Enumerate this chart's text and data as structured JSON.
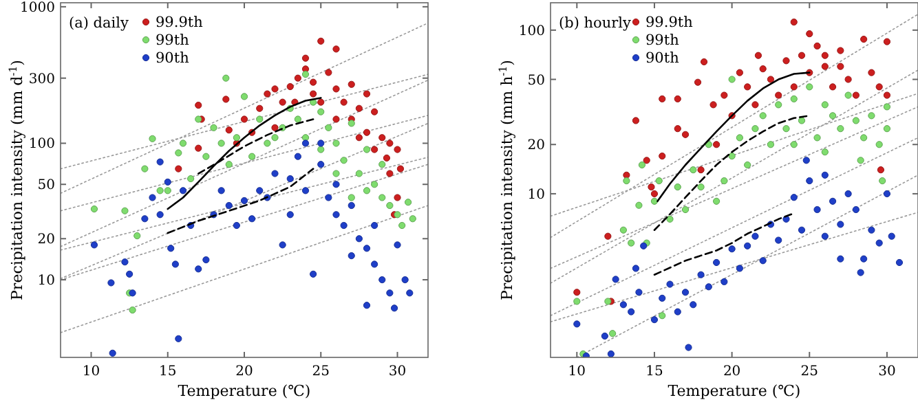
{
  "chart_data": [
    {
      "type": "scatter",
      "annotations": [
        "(a) daily"
      ],
      "xlabel": "Temperature (℃)",
      "ylabel": "Precipitation intensity (mm d$^{-1}$)",
      "xlim": [
        8,
        32
      ],
      "ylim": [
        2.7,
        1070
      ],
      "xticks": [
        10,
        15,
        20,
        25,
        30
      ],
      "yticks": [
        10,
        20,
        50,
        100,
        300,
        1000
      ],
      "log": "y",
      "grid": false,
      "legend": "top left",
      "series": [
        {
          "type": "line",
          "color": "#999999",
          "line_style": "dotted",
          "x": [
            8,
            32
          ],
          "values": [
            65,
            320
          ]
        },
        {
          "type": "line",
          "color": "#999999",
          "line_style": "dotted",
          "x": [
            8,
            32
          ],
          "values": [
            43,
            760
          ]
        },
        {
          "type": "line",
          "color": "#999999",
          "line_style": "dotted",
          "x": [
            8,
            32
          ],
          "values": [
            32,
            160
          ]
        },
        {
          "type": "line",
          "color": "#999999",
          "line_style": "dotted",
          "x": [
            8,
            32
          ],
          "values": [
            17.5,
            290
          ]
        },
        {
          "type": "line",
          "color": "#999999",
          "line_style": "dotted",
          "x": [
            8,
            32
          ],
          "values": [
            16.5,
            79
          ]
        },
        {
          "type": "line",
          "color": "#999999",
          "line_style": "dotted",
          "x": [
            8,
            32
          ],
          "values": [
            10.2,
            140
          ]
        },
        {
          "type": "line",
          "color": "#999999",
          "line_style": "dotted",
          "x": [
            8,
            32
          ],
          "values": [
            10,
            70
          ]
        },
        {
          "type": "line",
          "color": "#999999",
          "line_style": "dotted",
          "x": [
            8,
            32
          ],
          "values": [
            4.1,
            35
          ]
        },
        {
          "name": "99.9th",
          "marker": "circle",
          "color": "#cc1f1f",
          "x": [
            17,
            17.2,
            17,
            15.7,
            18.8,
            19,
            19.5,
            20,
            20.5,
            21,
            21.5,
            22,
            22.5,
            23,
            23.5,
            24,
            24,
            24.5,
            25,
            25.5,
            26,
            26,
            26.5,
            27,
            27.5,
            27,
            28,
            28.5,
            28,
            29,
            29.5,
            30,
            28.5,
            29.3,
            30.2,
            26,
            25,
            23.3,
            22,
            24.5,
            27.5,
            29.5,
            30,
            29.8
          ],
          "values": [
            190,
            150,
            92,
            65,
            210,
            125,
            100,
            150,
            120,
            180,
            230,
            250,
            200,
            260,
            300,
            420,
            350,
            280,
            560,
            330,
            490,
            250,
            200,
            270,
            180,
            150,
            230,
            170,
            120,
            110,
            100,
            90,
            90,
            78,
            65,
            150,
            200,
            200,
            130,
            230,
            110,
            60,
            40,
            30
          ]
        },
        {
          "name": "99th",
          "marker": "circle",
          "color": "#7fdc6e",
          "x": [
            10.2,
            12.2,
            12.5,
            12.7,
            13,
            13.5,
            14,
            14.5,
            15,
            15.7,
            16,
            16.5,
            17,
            17.5,
            18,
            18.8,
            18.5,
            19,
            19.5,
            20,
            20.5,
            21,
            21.5,
            22,
            22.5,
            23,
            23.5,
            24,
            24,
            24.5,
            25,
            25,
            25.5,
            26,
            26.5,
            27,
            27.5,
            28,
            28,
            28.5,
            29,
            29.5,
            30,
            30.3,
            31,
            30.7,
            27,
            26,
            29
          ],
          "values": [
            33,
            32,
            8,
            6,
            21,
            65,
            108,
            45,
            45,
            85,
            100,
            55,
            150,
            80,
            130,
            300,
            100,
            70,
            110,
            220,
            80,
            150,
            100,
            110,
            130,
            180,
            150,
            320,
            110,
            200,
            170,
            90,
            130,
            100,
            75,
            140,
            60,
            90,
            45,
            50,
            40,
            35,
            30,
            25,
            28,
            37,
            40,
            60,
            70
          ]
        },
        {
          "name": "90th",
          "marker": "circle",
          "color": "#1f3fc8",
          "x": [
            10.2,
            11.3,
            11.4,
            12.2,
            12.5,
            12.7,
            13.5,
            14,
            14.5,
            14.5,
            15,
            15.2,
            15.5,
            15.7,
            16,
            16.5,
            17,
            17.5,
            18,
            18.5,
            19,
            19.5,
            20,
            20.5,
            21,
            21.5,
            22,
            22.5,
            23,
            23.5,
            24,
            24.5,
            24,
            25,
            25.5,
            26,
            26.5,
            27,
            27.5,
            28,
            28,
            28.5,
            29,
            29.5,
            29.8,
            30,
            30.5,
            30.8,
            27,
            26,
            28.5,
            25,
            23
          ],
          "values": [
            18,
            9.5,
            2.9,
            13.5,
            11,
            8,
            28,
            40,
            73,
            30,
            52,
            17,
            13,
            3.7,
            45,
            25,
            12,
            14,
            30,
            45,
            35,
            25,
            38,
            28,
            45,
            40,
            60,
            18,
            55,
            80,
            100,
            11,
            45,
            70,
            40,
            50,
            25,
            35,
            20,
            17,
            6.5,
            13,
            10,
            8,
            6.2,
            18,
            10,
            8,
            15,
            30,
            25,
            100,
            30
          ]
        },
        {
          "type": "line",
          "color": "#000000",
          "line_style": "solid",
          "x": [
            15,
            16,
            17,
            18,
            19,
            20,
            21,
            22,
            23,
            24,
            25
          ],
          "values": [
            33,
            40,
            52,
            68,
            88,
            110,
            135,
            160,
            185,
            205,
            215
          ]
        },
        {
          "type": "line",
          "color": "#000000",
          "line_style": "dashed",
          "x": [
            17,
            18.5,
            20,
            21.5,
            23,
            24.5
          ],
          "values": [
            60,
            75,
            95,
            115,
            135,
            150
          ]
        },
        {
          "type": "line",
          "color": "#000000",
          "line_style": "dashed",
          "x": [
            15,
            17,
            19,
            21,
            23,
            24.5
          ],
          "values": [
            22,
            27,
            32,
            38,
            48,
            65
          ]
        }
      ]
    },
    {
      "type": "scatter",
      "annotations": [
        "(b) hourly"
      ],
      "xlabel": "Temperature (℃)",
      "ylabel": "Precipitation intensity (mm h$^{-1}$)",
      "xlim": [
        8.3,
        32
      ],
      "ylim": [
        1,
        147
      ],
      "xticks": [
        10,
        15,
        20,
        25,
        30
      ],
      "yticks": [
        10,
        20,
        50,
        100
      ],
      "log": "y",
      "grid": false,
      "legend": "top left",
      "series": [
        {
          "type": "line",
          "color": "#999999",
          "line_style": "dotted",
          "x": [
            8.3,
            32
          ],
          "values": [
            7.3,
            41
          ]
        },
        {
          "type": "line",
          "color": "#999999",
          "line_style": "dotted",
          "x": [
            8.3,
            32
          ],
          "values": [
            5.4,
            125
          ]
        },
        {
          "type": "line",
          "color": "#999999",
          "line_style": "dotted",
          "x": [
            8.3,
            32
          ],
          "values": [
            3.5,
            34
          ]
        },
        {
          "type": "line",
          "color": "#999999",
          "line_style": "dotted",
          "x": [
            8.3,
            32
          ],
          "values": [
            2.84,
            57
          ]
        },
        {
          "type": "line",
          "color": "#999999",
          "line_style": "dotted",
          "x": [
            8.3,
            32
          ],
          "values": [
            1.8,
            22
          ]
        },
        {
          "type": "line",
          "color": "#999999",
          "line_style": "dotted",
          "x": [
            8.3,
            32
          ],
          "values": [
            1.65,
            7.7
          ]
        },
        {
          "type": "line",
          "color": "#999999",
          "line_style": "dotted",
          "x": [
            10,
            32
          ],
          "values": [
            1,
            13
          ]
        },
        {
          "name": "99.9th",
          "marker": "circle",
          "color": "#cc1f1f",
          "x": [
            10,
            12,
            12.2,
            13.2,
            13.8,
            14.5,
            14.8,
            15,
            15.5,
            15.5,
            16.5,
            16.5,
            17,
            17.8,
            18,
            18.2,
            18.8,
            19,
            19.5,
            20,
            20.5,
            21,
            21.5,
            21.7,
            22,
            22.5,
            23,
            23.5,
            24,
            24.5,
            25,
            25,
            25.5,
            26,
            26.5,
            27,
            27.5,
            28,
            28.5,
            29,
            29.5,
            30,
            29.6,
            30,
            26,
            27,
            24
          ],
          "values": [
            2.5,
            5.5,
            2.2,
            13,
            28,
            16,
            11,
            10,
            38,
            17,
            38,
            25,
            23,
            48,
            14,
            64,
            35,
            20,
            40,
            30,
            55,
            45,
            35,
            70,
            58,
            50,
            40,
            65,
            112,
            70,
            95,
            55,
            80,
            60,
            45,
            75,
            50,
            40,
            88,
            55,
            45,
            85,
            14,
            40,
            70,
            60,
            45
          ]
        },
        {
          "name": "99th",
          "marker": "circle",
          "color": "#7fdc6e",
          "x": [
            10,
            10.4,
            12,
            12.3,
            13,
            13.2,
            13.5,
            14,
            14.2,
            14.5,
            15,
            15.3,
            15.5,
            16,
            16.5,
            17,
            17.5,
            18,
            18.5,
            19,
            19.5,
            20,
            20,
            20.5,
            21,
            21.5,
            22,
            22.5,
            23,
            23.5,
            24,
            24.5,
            25,
            25.5,
            26,
            26.5,
            27,
            27.5,
            28,
            28.3,
            28.5,
            29,
            29.5,
            29.7,
            30,
            30,
            26,
            24
          ],
          "values": [
            2.2,
            1.05,
            2.2,
            1.4,
            6,
            12,
            5,
            8.5,
            15,
            5,
            9,
            12,
            1.8,
            7,
            11,
            8,
            14,
            11,
            20,
            9,
            12,
            17,
            50,
            22,
            15,
            25,
            30,
            20,
            35,
            25,
            38,
            28,
            45,
            22,
            35,
            30,
            25,
            40,
            28,
            16,
            22,
            30,
            20,
            12,
            34,
            25,
            18,
            20
          ]
        },
        {
          "name": "90th",
          "marker": "circle",
          "color": "#1f3fc8",
          "x": [
            10,
            10.6,
            11.8,
            12.2,
            12.5,
            13,
            13.5,
            13.8,
            14,
            14.3,
            15,
            15.5,
            16,
            16.5,
            17,
            17.2,
            17.5,
            18,
            18.5,
            19,
            19.5,
            20,
            20.5,
            21,
            21.5,
            22,
            22.5,
            23,
            23.5,
            24,
            24.5,
            24.8,
            25,
            25.5,
            26,
            26.5,
            27,
            27.5,
            28,
            28.3,
            28.5,
            29,
            29.5,
            30,
            30.3,
            30.8,
            26,
            27
          ],
          "values": [
            1.6,
            1.02,
            1.35,
            1.05,
            3,
            2.1,
            1.9,
            3.5,
            2.5,
            4.8,
            1.7,
            2.3,
            2.8,
            1.9,
            2.5,
            1.15,
            2.1,
            3.2,
            2.7,
            3.8,
            2.9,
            4.6,
            3.5,
            4.8,
            5.5,
            3.9,
            6.5,
            5.2,
            7,
            9.5,
            6,
            16,
            12,
            8,
            13,
            9,
            6.5,
            10,
            8,
            3.3,
            4,
            6,
            5,
            10,
            5.5,
            3.8,
            5.5,
            4
          ]
        },
        {
          "type": "line",
          "color": "#000000",
          "line_style": "solid",
          "x": [
            15.2,
            16,
            17,
            18,
            19,
            20,
            21,
            22,
            23,
            24,
            25
          ],
          "values": [
            9,
            11.5,
            15,
            19,
            24,
            30,
            37,
            44,
            50,
            54,
            55
          ]
        },
        {
          "type": "line",
          "color": "#000000",
          "line_style": "dashed",
          "x": [
            15,
            16,
            17,
            18,
            19,
            20,
            21,
            22,
            23,
            24,
            25
          ],
          "values": [
            6,
            7.5,
            9.5,
            12,
            15,
            18,
            21,
            24,
            27,
            29,
            30
          ]
        },
        {
          "type": "line",
          "color": "#000000",
          "line_style": "dashed",
          "x": [
            15,
            17,
            19,
            20,
            21,
            22,
            23,
            24
          ],
          "values": [
            3.2,
            3.9,
            4.5,
            5,
            5.7,
            6.3,
            7,
            7.6
          ]
        }
      ]
    }
  ]
}
